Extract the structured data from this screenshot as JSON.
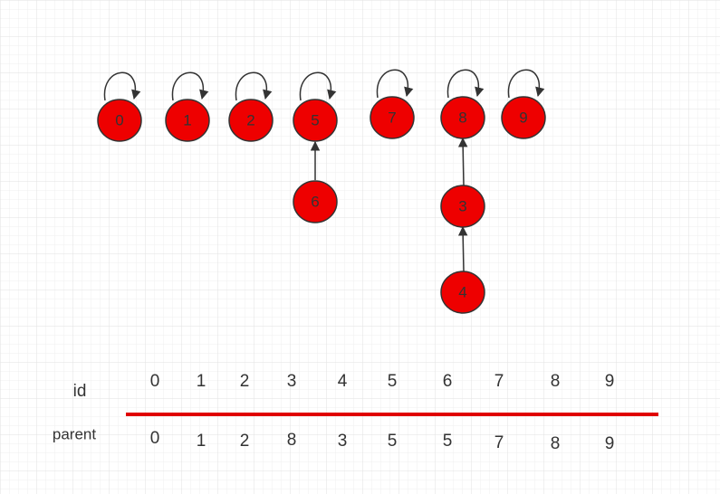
{
  "nodes": [
    {
      "label": "0"
    },
    {
      "label": "1"
    },
    {
      "label": "2"
    },
    {
      "label": "5"
    },
    {
      "label": "7"
    },
    {
      "label": "8"
    },
    {
      "label": "9"
    },
    {
      "label": "6"
    },
    {
      "label": "3"
    },
    {
      "label": "4"
    }
  ],
  "table": {
    "row_labels": [
      "id",
      "parent"
    ],
    "ids": [
      0,
      1,
      2,
      3,
      4,
      5,
      6,
      7,
      8,
      9
    ],
    "parents": [
      0,
      1,
      2,
      8,
      3,
      5,
      5,
      7,
      8,
      9
    ]
  }
}
